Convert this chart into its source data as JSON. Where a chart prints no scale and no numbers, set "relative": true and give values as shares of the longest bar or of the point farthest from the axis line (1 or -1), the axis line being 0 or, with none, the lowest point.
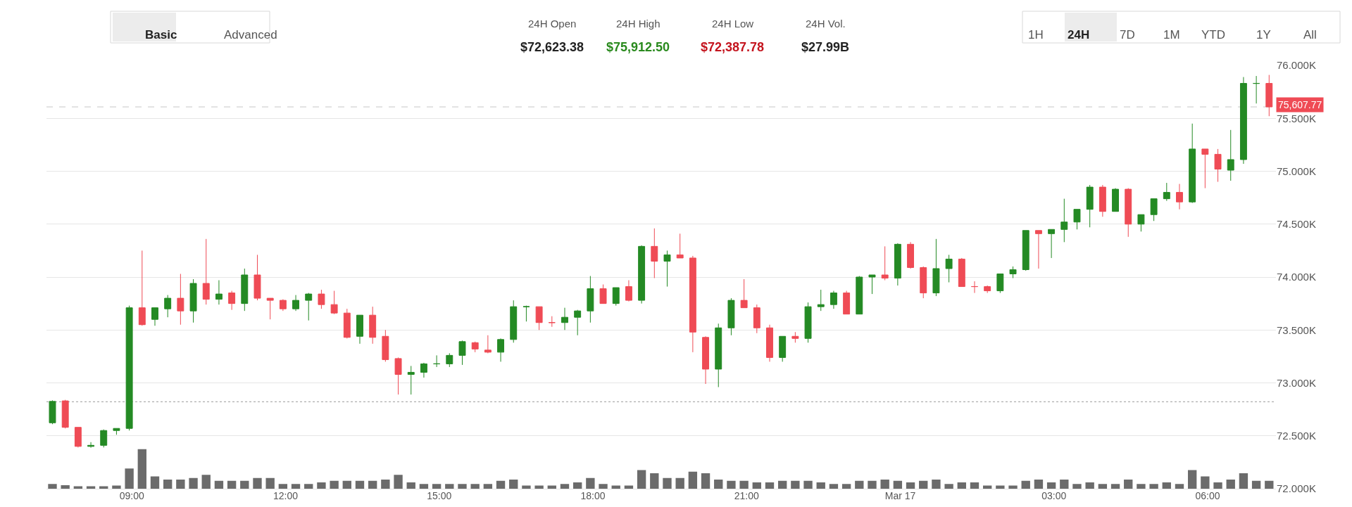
{
  "chart_data": [
    {
      "type": "candlestick",
      "x": [
        "--03-16T07:27",
        "--03-16T07:42",
        "--03-16T07:57",
        "--03-16T08:12",
        "--03-16T08:27",
        "--03-16T08:42",
        "--03-16T08:57",
        "--03-16T09:12",
        "--03-16T09:27",
        "--03-16T09:42",
        "--03-16T09:57",
        "--03-16T10:12",
        "--03-16T10:27",
        "--03-16T10:42",
        "--03-16T10:57",
        "--03-16T11:12",
        "--03-16T11:27",
        "--03-16T11:42",
        "--03-16T11:57",
        "--03-16T12:12",
        "--03-16T12:27",
        "--03-16T12:42",
        "--03-16T12:57",
        "--03-16T13:12",
        "--03-16T13:27",
        "--03-16T13:42",
        "--03-16T13:57",
        "--03-16T14:12",
        "--03-16T14:27",
        "--03-16T14:42",
        "--03-16T14:57",
        "--03-16T15:12",
        "--03-16T15:27",
        "--03-16T15:42",
        "--03-16T15:57",
        "--03-16T16:12",
        "--03-16T16:27",
        "--03-16T16:42",
        "--03-16T16:57",
        "--03-16T17:12",
        "--03-16T17:27",
        "--03-16T17:42",
        "--03-16T17:57",
        "--03-16T18:12",
        "--03-16T18:27",
        "--03-16T18:42",
        "--03-16T18:57",
        "--03-16T19:12",
        "--03-16T19:27",
        "--03-16T19:42",
        "--03-16T19:57",
        "--03-16T20:12",
        "--03-16T20:27",
        "--03-16T20:42",
        "--03-16T20:57",
        "--03-16T21:12",
        "--03-16T21:27",
        "--03-16T21:42",
        "--03-16T21:57",
        "--03-16T22:12",
        "--03-16T22:27",
        "--03-16T22:42",
        "--03-16T22:57",
        "--03-16T23:12",
        "--03-16T23:27",
        "--03-16T23:42",
        "--03-16T23:57",
        "--03-17T00:12",
        "--03-17T00:27",
        "--03-17T00:42",
        "--03-17T00:57",
        "--03-17T01:12",
        "--03-17T01:27",
        "--03-17T01:42",
        "--03-17T01:57",
        "--03-17T02:12",
        "--03-17T02:27",
        "--03-17T02:42",
        "--03-17T02:57",
        "--03-17T03:12",
        "--03-17T03:27",
        "--03-17T03:42",
        "--03-17T03:57",
        "--03-17T04:12",
        "--03-17T04:27",
        "--03-17T04:42",
        "--03-17T04:57",
        "--03-17T05:12",
        "--03-17T05:27",
        "--03-17T05:42",
        "--03-17T05:57",
        "--03-17T06:12",
        "--03-17T06:27",
        "--03-17T06:42",
        "--03-17T06:57",
        "--03-17T07:12"
      ],
      "ohlc": [
        [
          72623,
          72835,
          72610,
          72825
        ],
        [
          72830,
          72840,
          72570,
          72580
        ],
        [
          72580,
          72580,
          72390,
          72400
        ],
        [
          72400,
          72440,
          72388,
          72410
        ],
        [
          72410,
          72560,
          72390,
          72550
        ],
        [
          72550,
          72570,
          72510,
          72570
        ],
        [
          72570,
          73730,
          72550,
          73710
        ],
        [
          73710,
          74250,
          73540,
          73550
        ],
        [
          73600,
          73710,
          73540,
          73710
        ],
        [
          73700,
          73830,
          73620,
          73800
        ],
        [
          73800,
          74030,
          73550,
          73680
        ],
        [
          73680,
          73980,
          73570,
          73940
        ],
        [
          73940,
          74360,
          73740,
          73790
        ],
        [
          73790,
          73970,
          73740,
          73840
        ],
        [
          73850,
          73870,
          73690,
          73750
        ],
        [
          73750,
          74080,
          73680,
          74020
        ],
        [
          74020,
          74210,
          73780,
          73800
        ],
        [
          73800,
          73800,
          73600,
          73780
        ],
        [
          73780,
          73790,
          73680,
          73700
        ],
        [
          73700,
          73830,
          73680,
          73780
        ],
        [
          73780,
          73850,
          73590,
          73840
        ],
        [
          73840,
          73880,
          73700,
          73740
        ],
        [
          73740,
          73870,
          73650,
          73660
        ],
        [
          73660,
          73700,
          73420,
          73430
        ],
        [
          73440,
          73640,
          73370,
          73640
        ],
        [
          73640,
          73720,
          73370,
          73430
        ],
        [
          73440,
          73500,
          73200,
          73220
        ],
        [
          73230,
          73240,
          72890,
          73080
        ],
        [
          73080,
          73160,
          72890,
          73100
        ],
        [
          73100,
          73190,
          73050,
          73180
        ],
        [
          73180,
          73260,
          73150,
          73180
        ],
        [
          73180,
          73280,
          73150,
          73260
        ],
        [
          73260,
          73400,
          73170,
          73390
        ],
        [
          73380,
          73390,
          73290,
          73320
        ],
        [
          73310,
          73450,
          73280,
          73290
        ],
        [
          73290,
          73420,
          73200,
          73410
        ],
        [
          73410,
          73780,
          73380,
          73720
        ],
        [
          73720,
          73730,
          73580,
          73720
        ],
        [
          73720,
          73720,
          73500,
          73570
        ],
        [
          73570,
          73630,
          73530,
          73570
        ],
        [
          73570,
          73710,
          73500,
          73620
        ],
        [
          73620,
          73690,
          73450,
          73680
        ],
        [
          73680,
          74010,
          73570,
          73890
        ],
        [
          73890,
          73930,
          73750,
          73750
        ],
        [
          73750,
          73900,
          73730,
          73900
        ],
        [
          73910,
          73970,
          73770,
          73780
        ],
        [
          73780,
          74300,
          73750,
          74290
        ],
        [
          74290,
          74460,
          73990,
          74150
        ],
        [
          74150,
          74250,
          73910,
          74210
        ],
        [
          74210,
          74410,
          74180,
          74180
        ],
        [
          74180,
          74200,
          73290,
          73480
        ],
        [
          73430,
          73440,
          72990,
          73130
        ],
        [
          73130,
          73560,
          72960,
          73520
        ],
        [
          73520,
          73800,
          73450,
          73780
        ],
        [
          73780,
          73980,
          73710,
          73710
        ],
        [
          73710,
          73740,
          73470,
          73520
        ],
        [
          73520,
          73550,
          73200,
          73240
        ],
        [
          73240,
          73440,
          73200,
          73440
        ],
        [
          73440,
          73480,
          73380,
          73420
        ],
        [
          73420,
          73760,
          73380,
          73720
        ],
        [
          73720,
          73880,
          73680,
          73740
        ],
        [
          73740,
          73870,
          73700,
          73850
        ],
        [
          73850,
          73870,
          73650,
          73650
        ],
        [
          73650,
          74010,
          73650,
          74000
        ],
        [
          74000,
          74020,
          73840,
          74020
        ],
        [
          74020,
          74290,
          73970,
          73990
        ],
        [
          73990,
          74320,
          73920,
          74310
        ],
        [
          74310,
          74330,
          74080,
          74090
        ],
        [
          74090,
          74100,
          73800,
          73850
        ],
        [
          73850,
          74360,
          73820,
          74080
        ],
        [
          74080,
          74210,
          73950,
          74170
        ],
        [
          74170,
          74180,
          73910,
          73910
        ],
        [
          73910,
          73960,
          73850,
          73910
        ],
        [
          73910,
          73920,
          73850,
          73870
        ],
        [
          73870,
          74030,
          73850,
          74030
        ],
        [
          74030,
          74100,
          73990,
          74070
        ],
        [
          74070,
          74440,
          74060,
          74440
        ],
        [
          74440,
          74440,
          74080,
          74410
        ],
        [
          74410,
          74450,
          74180,
          74450
        ],
        [
          74450,
          74740,
          74330,
          74520
        ],
        [
          74520,
          74640,
          74450,
          74640
        ],
        [
          74640,
          74870,
          74470,
          74850
        ],
        [
          74850,
          74870,
          74570,
          74620
        ],
        [
          74620,
          74840,
          74620,
          74830
        ],
        [
          74830,
          74840,
          74380,
          74500
        ],
        [
          74500,
          74590,
          74430,
          74590
        ],
        [
          74590,
          74740,
          74530,
          74740
        ],
        [
          74740,
          74890,
          74720,
          74800
        ],
        [
          74800,
          74880,
          74640,
          74710
        ],
        [
          74710,
          75450,
          74700,
          75210
        ],
        [
          75210,
          75210,
          74840,
          75160
        ],
        [
          75160,
          75210,
          74900,
          75020
        ],
        [
          75010,
          75390,
          74910,
          75110
        ],
        [
          75110,
          75890,
          75070,
          75830
        ],
        [
          75830,
          75900,
          75640,
          75830
        ],
        [
          75830,
          75910,
          75520,
          75607.77
        ]
      ],
      "xlim": [
        "--03-16T07:20",
        "--03-17T07:20"
      ],
      "xticks": [
        {
          "value": "--03-16T09:00",
          "label": "09:00"
        },
        {
          "value": "--03-16T12:00",
          "label": "12:00"
        },
        {
          "value": "--03-16T15:00",
          "label": "15:00"
        },
        {
          "value": "--03-16T18:00",
          "label": "18:00"
        },
        {
          "value": "--03-16T21:00",
          "label": "21:00"
        },
        {
          "value": "--03-17T00:00",
          "label": "Mar 17"
        },
        {
          "value": "--03-17T03:00",
          "label": "03:00"
        },
        {
          "value": "--03-17T06:00",
          "label": "06:00"
        }
      ],
      "ylim": [
        72000,
        76000
      ],
      "yticks": [
        {
          "value": 72000,
          "label": "72.000K"
        },
        {
          "value": 72500,
          "label": "72.500K"
        },
        {
          "value": 73000,
          "label": "73.000K"
        },
        {
          "value": 73500,
          "label": "73.500K"
        },
        {
          "value": 74000,
          "label": "74.000K"
        },
        {
          "value": 74500,
          "label": "74.500K"
        },
        {
          "value": 75000,
          "label": "75.000K"
        },
        {
          "value": 75500,
          "label": "75.500K"
        },
        {
          "value": 76000,
          "label": "76.000K"
        }
      ],
      "grid": "y",
      "ref_lines": [
        {
          "axis": "y",
          "value": 72822,
          "label": null,
          "color": "#999999",
          "line_style": "dotted"
        },
        {
          "axis": "y",
          "value": 75607.77,
          "label": "75,607.77",
          "color": "#c8c8c8",
          "line_style": "dashed"
        }
      ]
    },
    {
      "type": "bar",
      "relative": true,
      "color": "#6b6b6b",
      "tick_labels": "x",
      "xlim": [
        "--03-16T07:20",
        "--03-17T07:20"
      ],
      "x": [
        "--03-16T07:27",
        "--03-16T07:42",
        "--03-16T07:57",
        "--03-16T08:12",
        "--03-16T08:27",
        "--03-16T08:42",
        "--03-16T08:57",
        "--03-16T09:12",
        "--03-16T09:27",
        "--03-16T09:42",
        "--03-16T09:57",
        "--03-16T10:12",
        "--03-16T10:27",
        "--03-16T10:42",
        "--03-16T10:57",
        "--03-16T11:12",
        "--03-16T11:27",
        "--03-16T11:42",
        "--03-16T11:57",
        "--03-16T12:12",
        "--03-16T12:27",
        "--03-16T12:42",
        "--03-16T12:57",
        "--03-16T13:12",
        "--03-16T13:27",
        "--03-16T13:42",
        "--03-16T13:57",
        "--03-16T14:12",
        "--03-16T14:27",
        "--03-16T14:42",
        "--03-16T14:57",
        "--03-16T15:12",
        "--03-16T15:27",
        "--03-16T15:42",
        "--03-16T15:57",
        "--03-16T16:12",
        "--03-16T16:27",
        "--03-16T16:42",
        "--03-16T16:57",
        "--03-16T17:12",
        "--03-16T17:27",
        "--03-16T17:42",
        "--03-16T17:57",
        "--03-16T18:12",
        "--03-16T18:27",
        "--03-16T18:42",
        "--03-16T18:57",
        "--03-16T19:12",
        "--03-16T19:27",
        "--03-16T19:42",
        "--03-16T19:57",
        "--03-16T20:12",
        "--03-16T20:27",
        "--03-16T20:42",
        "--03-16T20:57",
        "--03-16T21:12",
        "--03-16T21:27",
        "--03-16T21:42",
        "--03-16T21:57",
        "--03-16T22:12",
        "--03-16T22:27",
        "--03-16T22:42",
        "--03-16T22:57",
        "--03-16T23:12",
        "--03-16T23:27",
        "--03-16T23:42",
        "--03-16T23:57",
        "--03-17T00:12",
        "--03-17T00:27",
        "--03-17T00:42",
        "--03-17T00:57",
        "--03-17T01:12",
        "--03-17T01:27",
        "--03-17T01:42",
        "--03-17T01:57",
        "--03-17T02:12",
        "--03-17T02:27",
        "--03-17T02:42",
        "--03-17T02:57",
        "--03-17T03:12",
        "--03-17T03:27",
        "--03-17T03:42",
        "--03-17T03:57",
        "--03-17T04:12",
        "--03-17T04:27",
        "--03-17T04:42",
        "--03-17T04:57",
        "--03-17T05:12",
        "--03-17T05:27",
        "--03-17T05:42",
        "--03-17T05:57",
        "--03-17T06:12",
        "--03-17T06:27",
        "--03-17T06:42",
        "--03-17T06:57",
        "--03-17T07:12"
      ],
      "values": [
        0.12,
        0.09,
        0.06,
        0.06,
        0.06,
        0.08,
        0.51,
        1,
        0.31,
        0.23,
        0.23,
        0.27,
        0.35,
        0.2,
        0.2,
        0.2,
        0.27,
        0.27,
        0.12,
        0.12,
        0.12,
        0.16,
        0.2,
        0.2,
        0.2,
        0.2,
        0.23,
        0.35,
        0.16,
        0.12,
        0.12,
        0.12,
        0.12,
        0.12,
        0.12,
        0.2,
        0.23,
        0.08,
        0.08,
        0.08,
        0.12,
        0.16,
        0.27,
        0.12,
        0.08,
        0.08,
        0.47,
        0.39,
        0.27,
        0.27,
        0.43,
        0.39,
        0.23,
        0.2,
        0.2,
        0.16,
        0.16,
        0.2,
        0.2,
        0.2,
        0.16,
        0.12,
        0.12,
        0.2,
        0.2,
        0.23,
        0.2,
        0.16,
        0.2,
        0.23,
        0.12,
        0.16,
        0.16,
        0.08,
        0.08,
        0.08,
        0.2,
        0.23,
        0.16,
        0.23,
        0.12,
        0.16,
        0.12,
        0.12,
        0.23,
        0.12,
        0.12,
        0.16,
        0.12,
        0.47,
        0.31,
        0.16,
        0.23,
        0.39,
        0.2,
        0.2
      ]
    },
    {
      "type": "other",
      "annotations": [
        "Basic",
        "Advanced",
        "24H Open",
        "$72,623.38",
        "24H High",
        "$75,912.50",
        "24H Low",
        "$72,387.78",
        "24H Vol.",
        "$27.99B",
        "1H",
        "24H",
        "7D",
        "1M",
        "YTD",
        "1Y",
        "All"
      ]
    }
  ]
}
